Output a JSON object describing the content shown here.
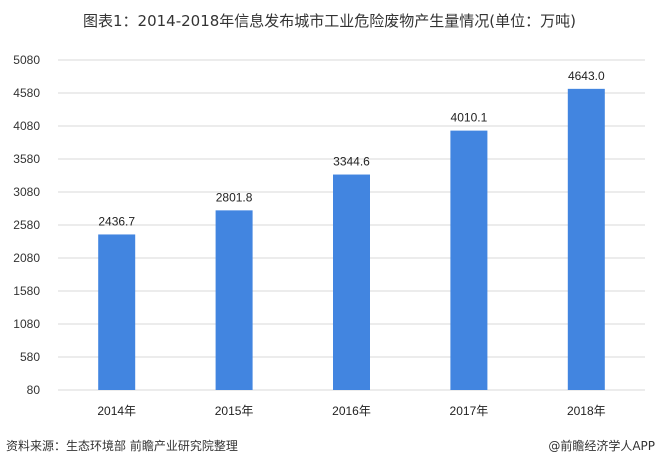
{
  "chart_data": {
    "type": "bar",
    "title": "图表1：2014-2018年信息发布城市工业危险废物产生量情况(单位：万吨)",
    "categories": [
      "2014年",
      "2015年",
      "2016年",
      "2017年",
      "2018年"
    ],
    "values": [
      2436.7,
      2801.8,
      3344.6,
      4010.1,
      4643.0
    ],
    "data_labels": [
      "2436.7",
      "2801.8",
      "3344.6",
      "4010.1",
      "4643.0"
    ],
    "xlabel": "",
    "ylabel": "",
    "ylim": [
      80,
      5080
    ],
    "yticks": [
      80,
      580,
      1080,
      1580,
      2080,
      2580,
      3080,
      3580,
      4080,
      4580,
      5080
    ],
    "grid": true,
    "bar_color": "#4285e0",
    "grid_color": "#d9d9d9"
  },
  "footer": {
    "source": "资料来源：生态环境部 前瞻产业研究院整理",
    "brand": "@前瞻经济学人APP"
  }
}
